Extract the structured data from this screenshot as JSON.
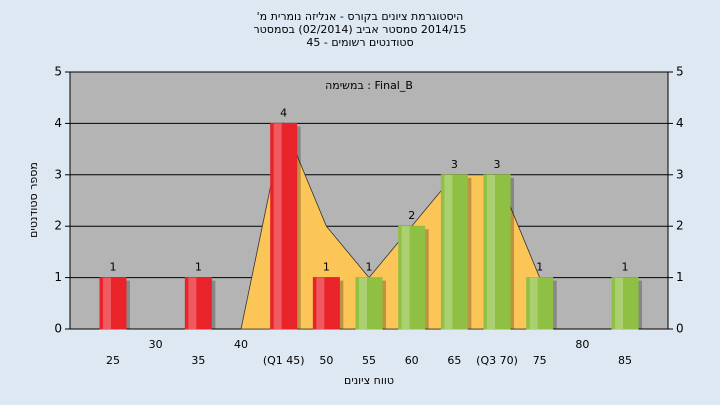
{
  "chart_data": {
    "type": "bar",
    "title": [
      "היסטוגרמת ציונים בקורס - אנליזה נומרית מ'",
      "2014/15 סמסטר אביב (02/2014) בסמסטר",
      "סטודנטים רשומים - 45"
    ],
    "annotation": "Final_B : במשימה",
    "x_label": "טווח ציונים",
    "y_label": "מספר סטודנטים",
    "categories": [
      "25",
      "30",
      "35",
      "40",
      "(Q1 45)",
      "50",
      "55",
      "60",
      "65",
      "(Q3 70)",
      "75",
      "80",
      "85"
    ],
    "values": [
      1,
      0,
      1,
      0,
      4,
      1,
      1,
      2,
      3,
      3,
      1,
      0,
      1
    ],
    "colors": [
      "#e8232a",
      "#e8232a",
      "#e8232a",
      "#e8232a",
      "#e8232a",
      "#e8232a",
      "#8fc043",
      "#8fc043",
      "#8fc043",
      "#8fc043",
      "#8fc043",
      "#8fc043",
      "#8fc043"
    ],
    "overlay": {
      "values": [
        null,
        null,
        null,
        0,
        4,
        2,
        1,
        2,
        3,
        3,
        1,
        null,
        null
      ],
      "color": "#fcc558"
    },
    "ylim": [
      0,
      5
    ],
    "yticks": [
      0,
      1,
      2,
      3,
      4,
      5
    ],
    "grid": true
  }
}
